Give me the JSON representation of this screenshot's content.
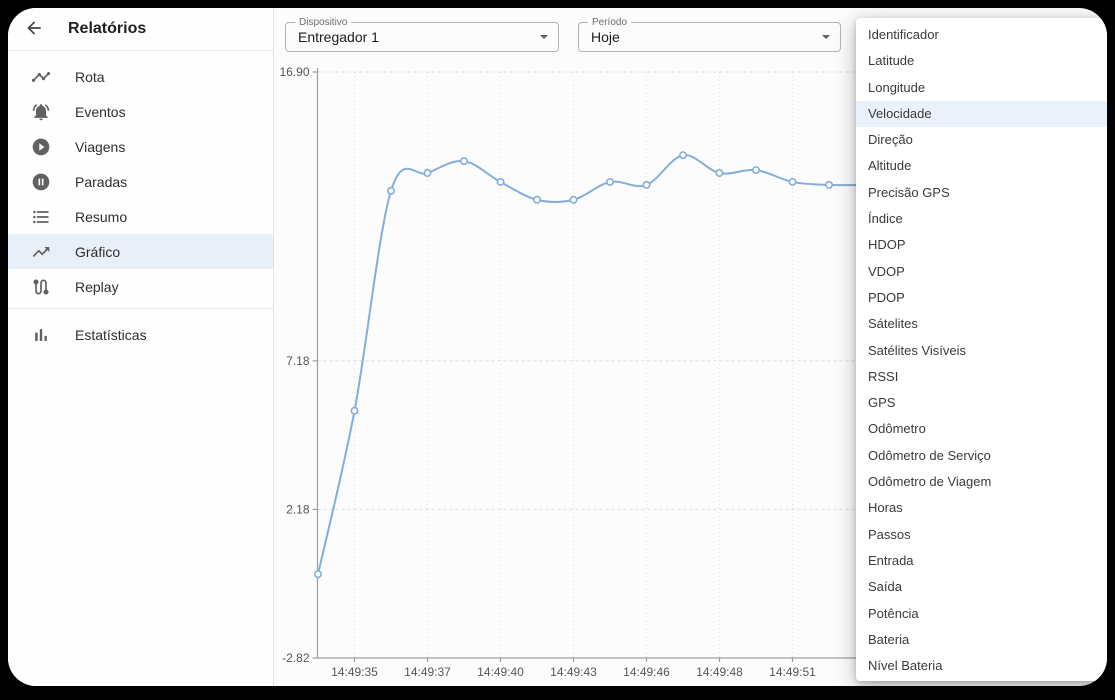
{
  "app": {
    "title": "Relatórios"
  },
  "sidebar": {
    "items": [
      {
        "label": "Rota",
        "icon": "timeline-icon",
        "selected": false
      },
      {
        "label": "Eventos",
        "icon": "bell-icon",
        "selected": false
      },
      {
        "label": "Viagens",
        "icon": "play-circle-icon",
        "selected": false
      },
      {
        "label": "Paradas",
        "icon": "pause-circle-icon",
        "selected": false
      },
      {
        "label": "Resumo",
        "icon": "list-icon",
        "selected": false
      },
      {
        "label": "Gráfico",
        "icon": "trending-up-icon",
        "selected": true
      },
      {
        "label": "Replay",
        "icon": "route-icon",
        "selected": false
      }
    ],
    "footer_items": [
      {
        "label": "Estatísticas",
        "icon": "bar-chart-icon",
        "selected": false
      }
    ]
  },
  "filters": {
    "device": {
      "label": "Dispositivo",
      "value": "Entregador 1"
    },
    "period": {
      "label": "Período",
      "value": "Hoje"
    }
  },
  "column_menu": {
    "selected": "Velocidade",
    "items": [
      "Identificador",
      "Latitude",
      "Longitude",
      "Velocidade",
      "Direção",
      "Altitude",
      "Precisão GPS",
      "Índice",
      "HDOP",
      "VDOP",
      "PDOP",
      "Sátelites",
      "Satélites Visíveis",
      "RSSI",
      "GPS",
      "Odômetro",
      "Odômetro de Serviço",
      "Odômetro de Viagem",
      "Horas",
      "Passos",
      "Entrada",
      "Saída",
      "Potência",
      "Bateria",
      "Nível Bateria"
    ]
  },
  "chart_data": {
    "type": "line",
    "title": "",
    "xlabel": "",
    "ylabel": "",
    "series": [
      {
        "name": "Velocidade",
        "values": [
          0,
          5.5,
          12.9,
          13.5,
          13.9,
          13.2,
          12.6,
          12.6,
          13.2,
          13.1,
          14.1,
          13.5,
          13.6,
          13.2,
          13.1,
          13.1
        ]
      }
    ],
    "x_ticks": [
      {
        "index": 1,
        "label": "14:49:35"
      },
      {
        "index": 3,
        "label": "14:49:37"
      },
      {
        "index": 5,
        "label": "14:49:40"
      },
      {
        "index": 7,
        "label": "14:49:43"
      },
      {
        "index": 9,
        "label": "14:49:46"
      },
      {
        "index": 11,
        "label": "14:49:48"
      },
      {
        "index": 13,
        "label": "14:49:51"
      }
    ],
    "y_ticks": [
      {
        "value": 16.9,
        "label": "16.90"
      },
      {
        "value": 7.18,
        "label": "7.18"
      },
      {
        "value": 2.18,
        "label": "2.18"
      },
      {
        "value": -2.82,
        "label": "-2.82"
      }
    ],
    "ylim": [
      -2.82,
      16.9
    ],
    "grid": true,
    "legend": false,
    "colors": {
      "line": "#84aed9",
      "grid": "#dcdcdc",
      "axis": "#9e9e9e",
      "tick_text": "#555555"
    }
  }
}
